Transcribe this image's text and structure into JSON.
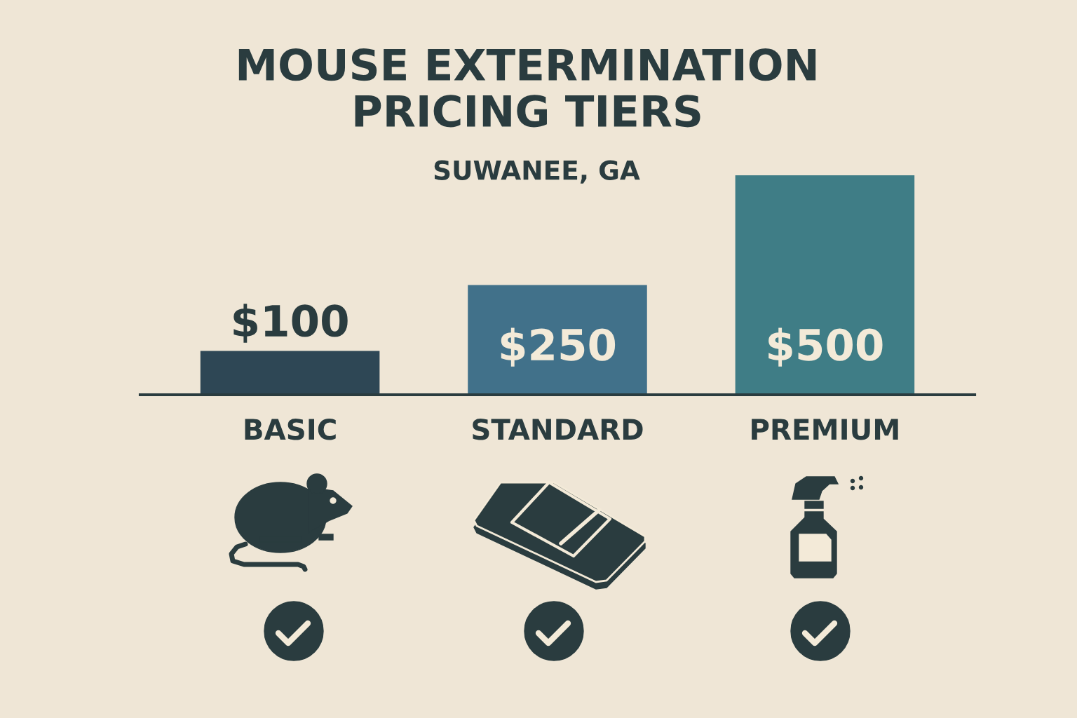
{
  "chart_data": {
    "type": "bar",
    "title": "MOUSE EXTERMINATION\nPRICING TIERS",
    "subtitle": "SUWANEE, GA",
    "categories": [
      "BASIC",
      "STANDARD",
      "PREMIUM"
    ],
    "values": [
      100,
      250,
      500
    ],
    "colors": [
      "#2e4755",
      "#41718a",
      "#3f7d86"
    ],
    "value_labels": [
      "$100",
      "$250",
      "$500"
    ]
  }
}
